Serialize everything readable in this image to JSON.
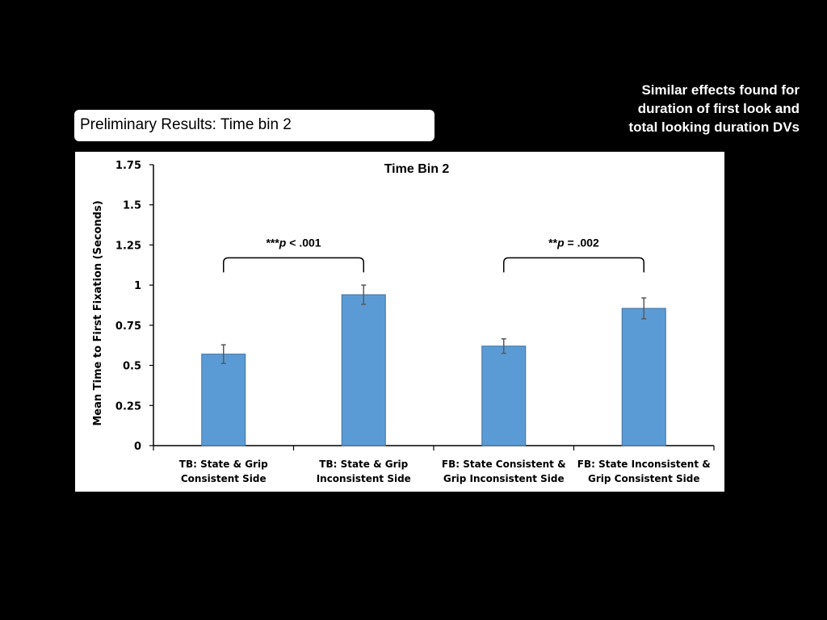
{
  "note": {
    "lines": [
      "Similar effects found for",
      "duration of first look and",
      "total looking duration DVs"
    ]
  },
  "slide_title": "Preliminary Results: Time bin 2",
  "chart_data": {
    "type": "bar",
    "title": "Time Bin 2",
    "ylabel": "Mean Time to First Fixation (Seconds)",
    "xlabel": "",
    "ylim": [
      0,
      1.75
    ],
    "yticks": [
      0,
      0.25,
      0.5,
      0.75,
      1,
      1.25,
      1.5,
      1.75
    ],
    "ytick_labels": [
      "0",
      "0.25",
      "0.5",
      "0.75",
      "1",
      "1.25",
      "1.5",
      "1.75"
    ],
    "categories": [
      [
        "TB: State & Grip",
        "Consistent Side"
      ],
      [
        "TB: State & Grip",
        "Inconsistent Side"
      ],
      [
        "FB: State Consistent &",
        "Grip Inconsistent Side"
      ],
      [
        "FB: State Inconsistent &",
        "Grip Consistent Side"
      ]
    ],
    "values": [
      0.57,
      0.94,
      0.62,
      0.855
    ],
    "errors": [
      0.058,
      0.06,
      0.045,
      0.065
    ],
    "bar_color": "#5b9bd5",
    "bar_edge_color": "#41719c",
    "error_color": "#595959",
    "grid": false,
    "comparisons": [
      {
        "between": [
          0,
          1
        ],
        "label_prefix": "***",
        "label_italic": "p",
        "label_suffix": " < .001",
        "bracket_y": 1.17
      },
      {
        "between": [
          2,
          3
        ],
        "label_prefix": "**",
        "label_italic": "p",
        "label_suffix": " = .002",
        "bracket_y": 1.17
      }
    ]
  }
}
